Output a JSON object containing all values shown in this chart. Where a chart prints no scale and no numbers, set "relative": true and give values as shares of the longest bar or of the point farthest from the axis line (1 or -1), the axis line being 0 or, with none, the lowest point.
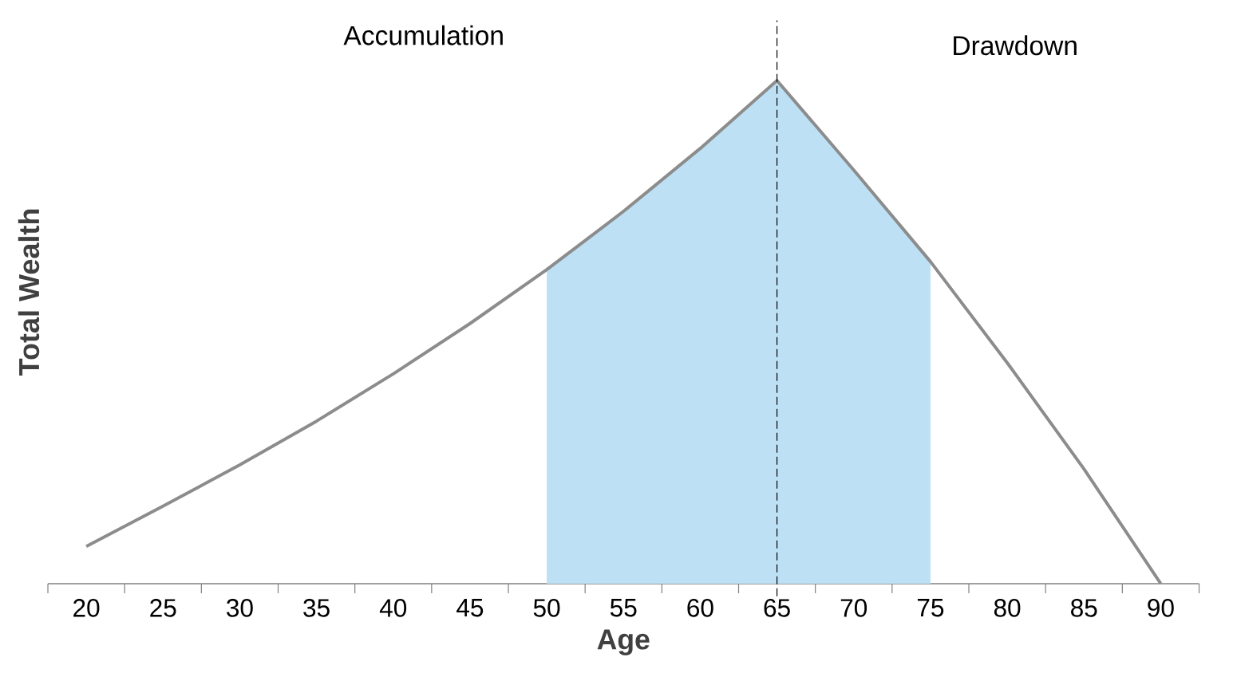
{
  "chart_data": {
    "type": "line",
    "relative": true,
    "xlabel": "Age",
    "ylabel": "Total Wealth",
    "categories": [
      "20",
      "25",
      "30",
      "35",
      "40",
      "45",
      "50",
      "55",
      "60",
      "65",
      "70",
      "75",
      "80",
      "85",
      "90"
    ],
    "series": [
      {
        "type": "area",
        "color": "#bde0f5",
        "values": [
          null,
          null,
          null,
          null,
          null,
          null,
          0.624,
          0.74,
          0.865,
          1,
          0.822,
          0.64,
          null,
          null,
          null
        ]
      },
      {
        "color": "#8c8c8c",
        "values": [
          0.074,
          0.154,
          0.236,
          0.323,
          0.417,
          0.517,
          0.624,
          0.74,
          0.865,
          1,
          0.822,
          0.64,
          0.439,
          0.228,
          0
        ]
      }
    ],
    "ref_lines": [
      {
        "axis": "x",
        "value": "65",
        "color": "#000000",
        "line_style": "dashed"
      }
    ],
    "annotations": [
      "Accumulation",
      "Drawdown"
    ]
  }
}
